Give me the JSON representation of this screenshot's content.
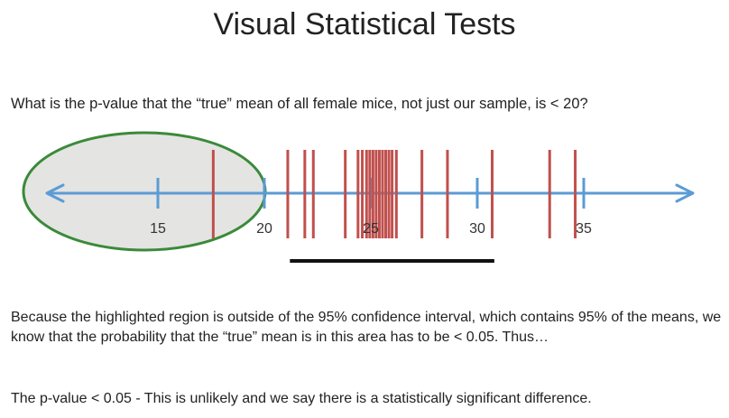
{
  "title": "Visual Statistical Tests",
  "question": "What is the p-value that the “true” mean of all female mice, not just our sample, is < 20?",
  "explanation": "Because the highlighted region is outside of the 95% confidence interval, which contains 95% of the means, we know that the probability that the “true” mean is in this area has to be < 0.05.  Thus…",
  "conclusion": "The p-value < 0.05 - This is unlikely and we say there is a statistically significant difference.",
  "number_line": {
    "ticks": [
      {
        "value": 15,
        "label": "15"
      },
      {
        "value": 20,
        "label": "20"
      },
      {
        "value": 25,
        "label": "25"
      },
      {
        "value": 30,
        "label": "30"
      },
      {
        "value": 35,
        "label": "35"
      }
    ],
    "sample_means": [
      17.6,
      21.1,
      21.9,
      22.3,
      23.8,
      24.4,
      24.6,
      24.8,
      24.95,
      25.1,
      25.25,
      25.4,
      25.55,
      25.7,
      25.85,
      26.0,
      26.2,
      27.4,
      28.6,
      30.7,
      33.4,
      34.6
    ],
    "confidence_interval": [
      21.2,
      30.8
    ],
    "highlight_region_below": 20
  },
  "colors": {
    "axis": "#5b9bd5",
    "means": "#c0504d",
    "highlight_fill": "#e4e4e2",
    "highlight_stroke": "#3a8a3a",
    "interval": "#111111"
  }
}
